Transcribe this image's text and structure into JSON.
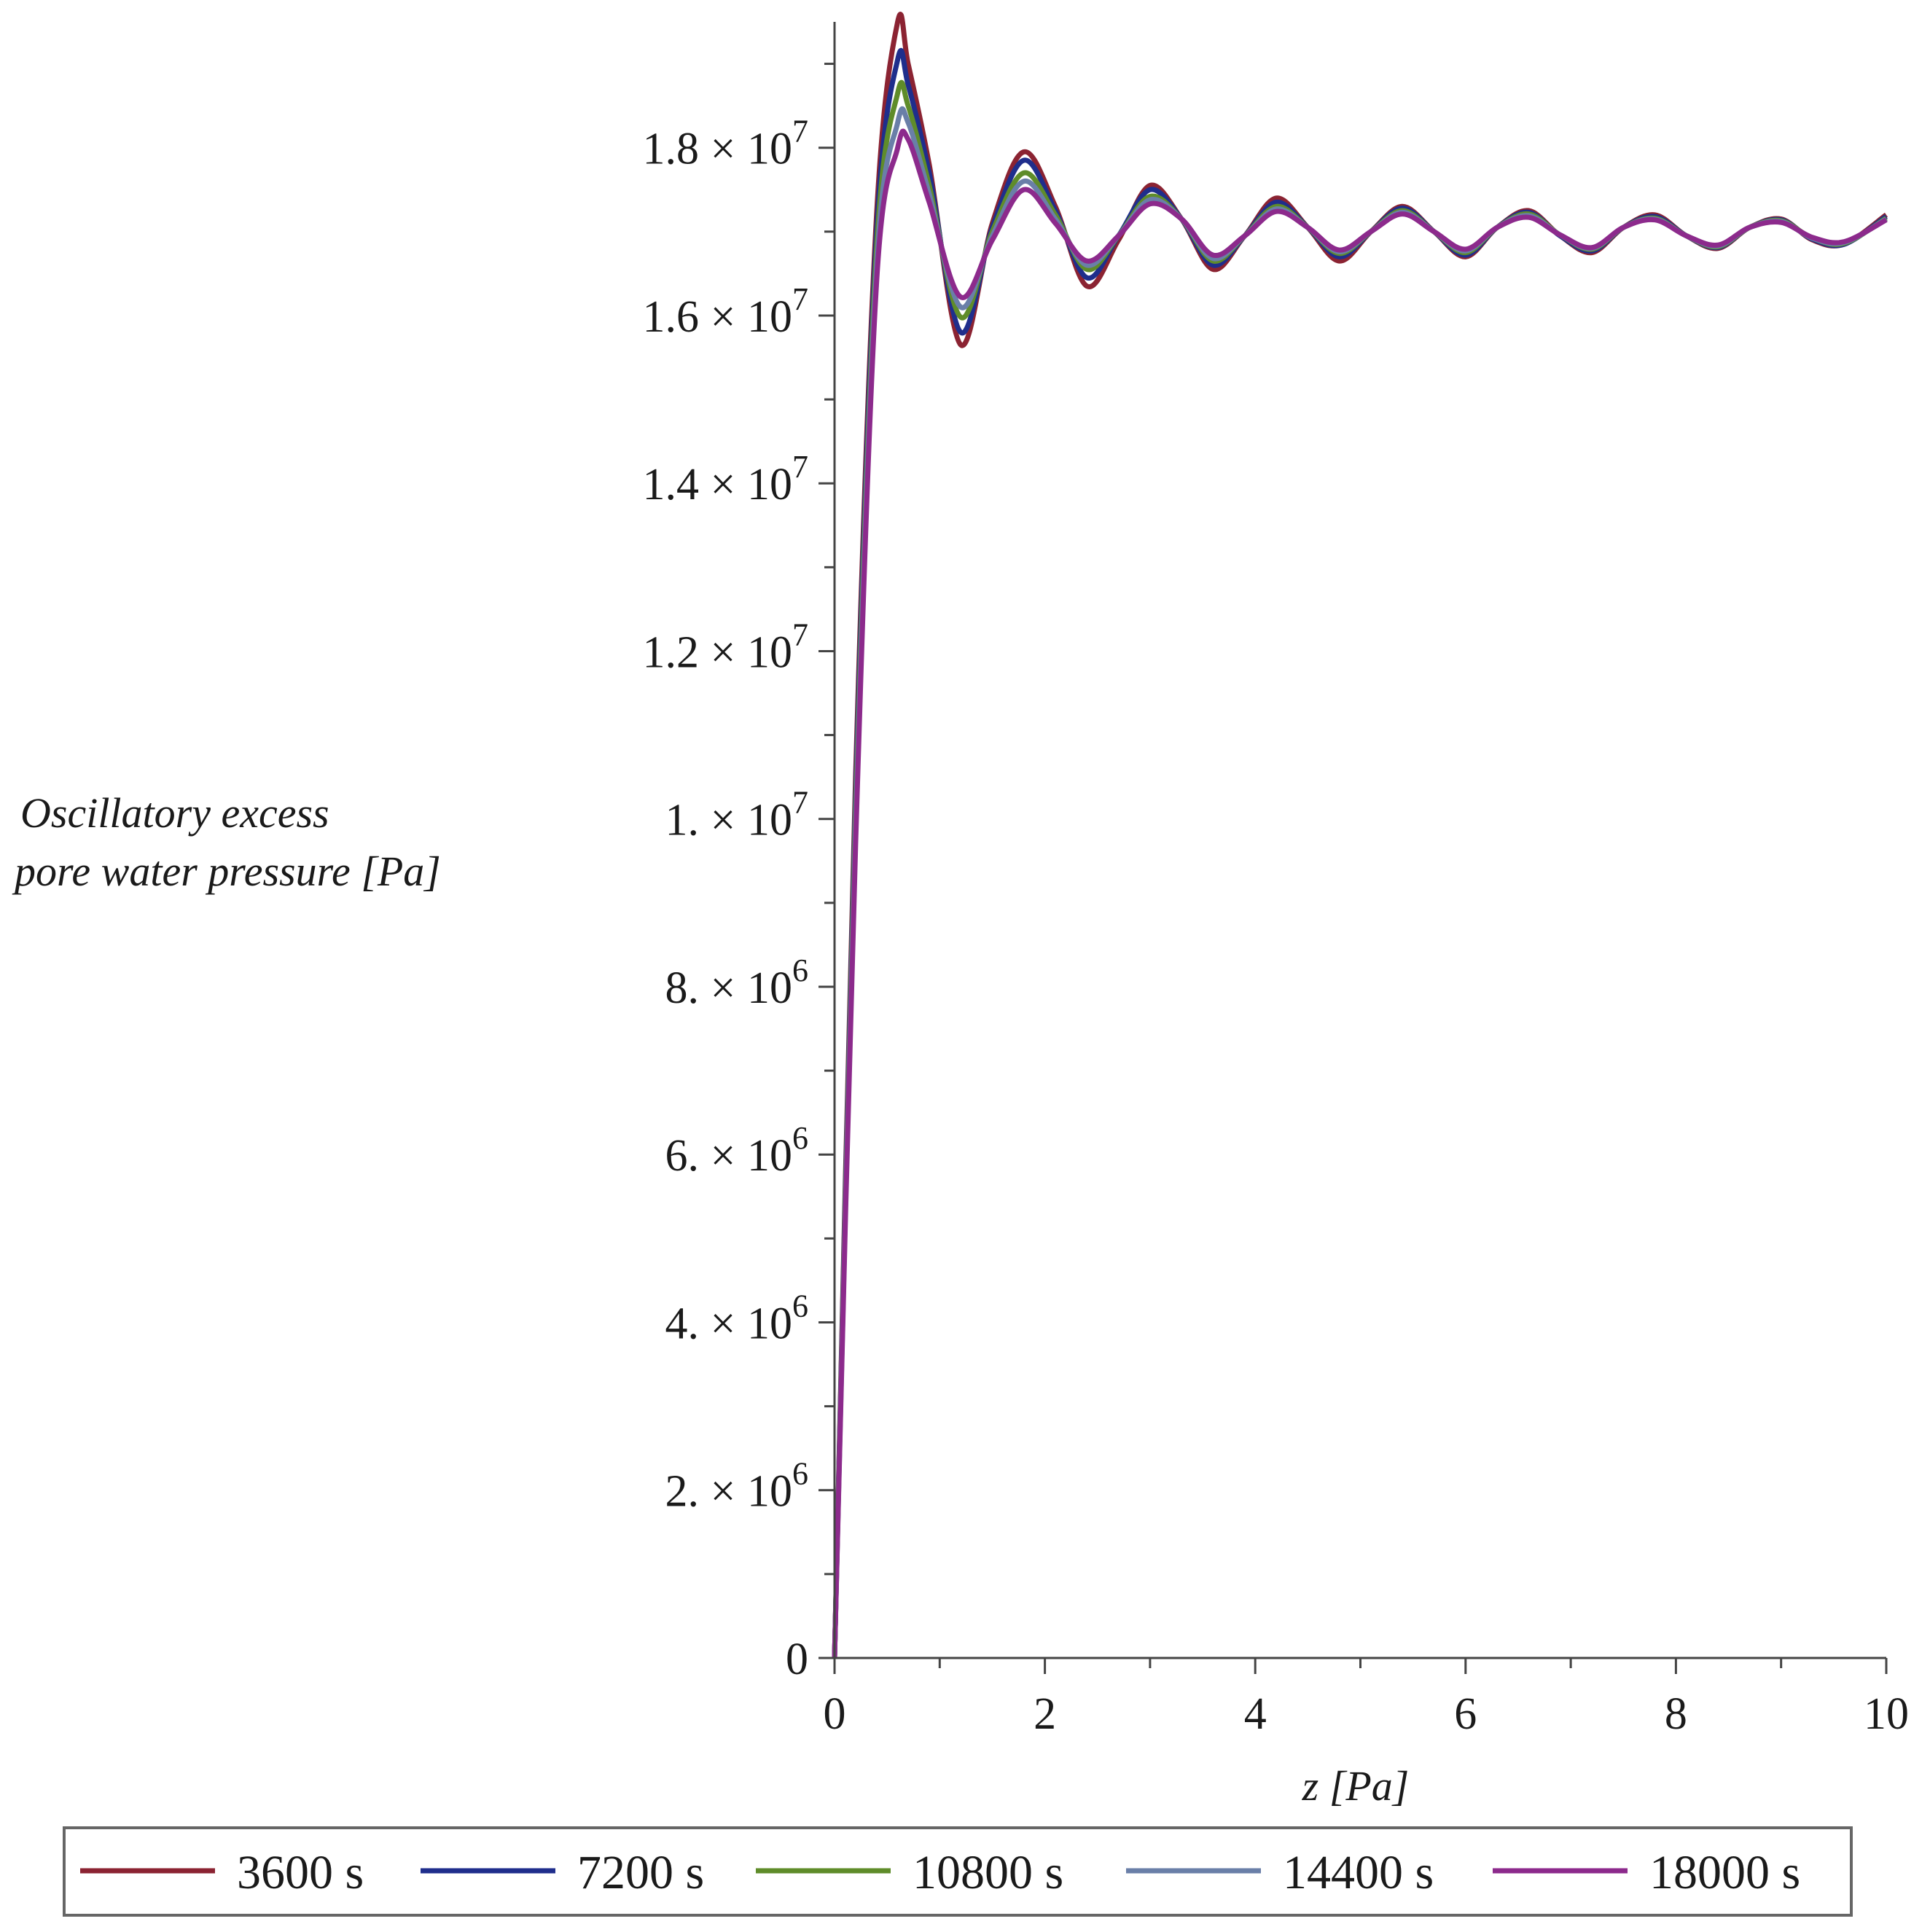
{
  "chart_data": {
    "type": "line",
    "xlabel": "z [Pa]",
    "ylabel_lines": [
      "Oscillatory excess",
      "pore water pressure [Pa]"
    ],
    "xlim": [
      0,
      10
    ],
    "ylim": [
      0,
      19500000
    ],
    "x_ticks": [
      0,
      2,
      4,
      6,
      8,
      10
    ],
    "x_tick_labels": [
      "0",
      "2",
      "4",
      "6",
      "8",
      "10"
    ],
    "y_ticks": [
      {
        "value": 0,
        "mantissa": "0",
        "exponent": ""
      },
      {
        "value": 2000000,
        "mantissa": "2.",
        "exponent": "6"
      },
      {
        "value": 4000000,
        "mantissa": "4.",
        "exponent": "6"
      },
      {
        "value": 6000000,
        "mantissa": "6.",
        "exponent": "6"
      },
      {
        "value": 8000000,
        "mantissa": "8.",
        "exponent": "6"
      },
      {
        "value": 10000000,
        "mantissa": "1.",
        "exponent": "7"
      },
      {
        "value": 12000000,
        "mantissa": "1.2",
        "exponent": "7"
      },
      {
        "value": 14000000,
        "mantissa": "1.4",
        "exponent": "7"
      },
      {
        "value": 16000000,
        "mantissa": "1.6",
        "exponent": "7"
      },
      {
        "value": 18000000,
        "mantissa": "1.8",
        "exponent": "7"
      }
    ],
    "grid": false,
    "legend_position": "bottom",
    "x": [
      0,
      0.2,
      0.4,
      0.6,
      0.7,
      0.9,
      1.2,
      1.5,
      1.8,
      2.1,
      2.4,
      2.7,
      3.0,
      3.3,
      3.6,
      3.9,
      4.2,
      4.5,
      4.8,
      5.1,
      5.4,
      5.7,
      6.0,
      6.3,
      6.6,
      6.9,
      7.2,
      7.5,
      7.8,
      8.1,
      8.4,
      8.7,
      9.0,
      9.3,
      9.6,
      10.0
    ],
    "series": [
      {
        "name": "3600 s",
        "color": "#8b2332",
        "values": [
          0,
          10500000,
          17200000,
          19500000,
          19000000,
          17800000,
          15650000,
          17100000,
          17950000,
          17300000,
          16350000,
          16900000,
          17550000,
          17150000,
          16550000,
          16950000,
          17400000,
          17050000,
          16650000,
          17000000,
          17300000,
          17000000,
          16700000,
          17050000,
          17250000,
          16950000,
          16750000,
          17050000,
          17200000,
          16950000,
          16800000,
          17050000,
          17150000,
          16900000,
          16850000,
          17200000
        ]
      },
      {
        "name": "7200 s",
        "color": "#1f2e8c",
        "values": [
          0,
          10300000,
          17000000,
          19050000,
          18750000,
          17700000,
          15800000,
          17050000,
          17850000,
          17250000,
          16450000,
          16950000,
          17500000,
          17150000,
          16600000,
          16950000,
          17350000,
          17050000,
          16700000,
          17000000,
          17280000,
          17000000,
          16720000,
          17050000,
          17230000,
          16950000,
          16770000,
          17050000,
          17180000,
          16950000,
          16810000,
          17050000,
          17140000,
          16910000,
          16850000,
          17180000
        ]
      },
      {
        "name": "10800 s",
        "color": "#5f8c2a",
        "values": [
          0,
          10100000,
          16800000,
          18650000,
          18500000,
          17550000,
          15980000,
          17000000,
          17700000,
          17200000,
          16550000,
          16950000,
          17420000,
          17150000,
          16650000,
          16950000,
          17300000,
          17050000,
          16740000,
          17000000,
          17250000,
          17000000,
          16750000,
          17050000,
          17210000,
          16960000,
          16790000,
          17050000,
          17160000,
          16950000,
          16820000,
          17050000,
          17130000,
          16920000,
          16860000,
          17160000
        ]
      },
      {
        "name": "14400 s",
        "color": "#6a7fa8",
        "values": [
          0,
          9900000,
          16600000,
          18300000,
          18300000,
          17450000,
          16100000,
          16950000,
          17600000,
          17150000,
          16600000,
          16950000,
          17380000,
          17150000,
          16680000,
          16950000,
          17270000,
          17050000,
          16760000,
          17000000,
          17230000,
          17000000,
          16770000,
          17050000,
          17190000,
          16960000,
          16800000,
          17050000,
          17150000,
          16950000,
          16830000,
          17050000,
          17120000,
          16920000,
          16870000,
          17150000
        ]
      },
      {
        "name": "18000 s",
        "color": "#8c2a8c",
        "values": [
          0,
          9700000,
          16400000,
          18000000,
          18100000,
          17350000,
          16220000,
          16900000,
          17500000,
          17100000,
          16650000,
          16950000,
          17330000,
          17150000,
          16720000,
          16950000,
          17240000,
          17050000,
          16780000,
          17000000,
          17210000,
          17000000,
          16790000,
          17050000,
          17170000,
          16960000,
          16810000,
          17050000,
          17140000,
          16950000,
          16840000,
          17050000,
          17110000,
          16930000,
          16880000,
          17140000
        ]
      }
    ]
  }
}
